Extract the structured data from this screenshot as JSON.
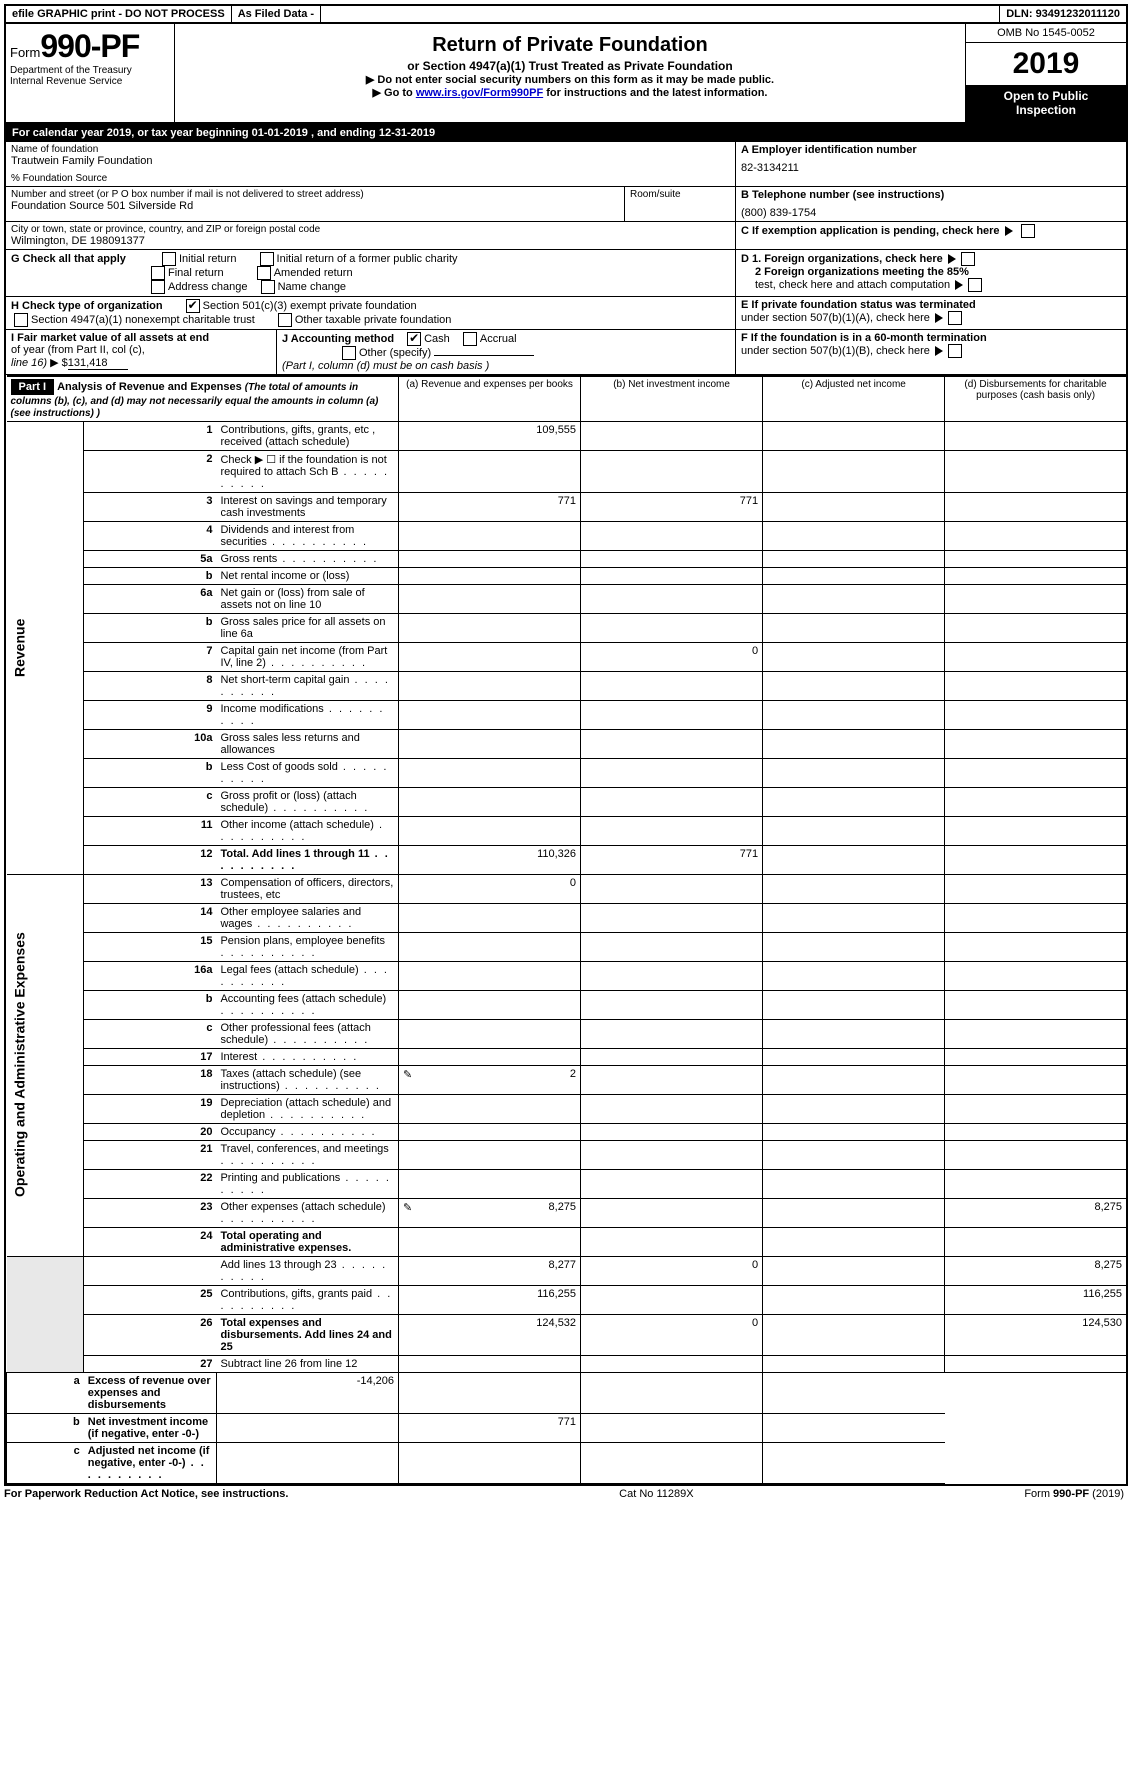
{
  "topbar": {
    "efile": "efile GRAPHIC print - DO NOT PROCESS",
    "asfiled": "As Filed Data -",
    "dln_label": "DLN:",
    "dln": "93491232011120"
  },
  "header": {
    "form_prefix": "Form",
    "form_no": "990-PF",
    "dept": "Department of the Treasury",
    "irs": "Internal Revenue Service",
    "title": "Return of Private Foundation",
    "subtitle": "or Section 4947(a)(1) Trust Treated as Private Foundation",
    "warn1": "Do not enter social security numbers on this form as it may be made public.",
    "warn2_pre": "Go to ",
    "warn2_link": "www.irs.gov/Form990PF",
    "warn2_post": " for instructions and the latest information.",
    "omb": "OMB No 1545-0052",
    "year": "2019",
    "open1": "Open to Public",
    "open2": "Inspection"
  },
  "calyear": {
    "pre": "For calendar year 2019, or tax year beginning ",
    "begin": "01-01-2019",
    "mid": " , and ending ",
    "end": "12-31-2019"
  },
  "ident": {
    "name_label": "Name of foundation",
    "name": "Trautwein Family Foundation",
    "pct_label": "% Foundation Source",
    "street_label": "Number and street (or P O  box number if mail is not delivered to street address)",
    "street": "Foundation Source 501 Silverside Rd",
    "room_label": "Room/suite",
    "city_label": "City or town, state or province, country, and ZIP or foreign postal code",
    "city": "Wilmington, DE  198091377",
    "a_label": "A Employer identification number",
    "a_val": "82-3134211",
    "b_label": "B Telephone number (see instructions)",
    "b_val": "(800) 839-1754",
    "c_label": "C If exemption application is pending, check here",
    "d1": "D 1. Foreign organizations, check here",
    "d2a": "2 Foreign organizations meeting the 85%",
    "d2b": "test, check here and attach computation",
    "e1": "E  If private foundation status was terminated",
    "e2": "under section 507(b)(1)(A), check here",
    "f1": "F  If the foundation is in a 60-month termination",
    "f2": "under section 507(b)(1)(B), check here"
  },
  "g": {
    "label": "G Check all that apply",
    "opts": [
      "Initial return",
      "Initial return of a former public charity",
      "Final return",
      "Amended return",
      "Address change",
      "Name change"
    ]
  },
  "h": {
    "label": "H Check type of organization",
    "o1": "Section 501(c)(3) exempt private foundation",
    "o2": "Section 4947(a)(1) nonexempt charitable trust",
    "o3": "Other taxable private foundation"
  },
  "i": {
    "label1": "I Fair market value of all assets at end",
    "label2": "of year (from Part II, col  (c),",
    "label3": "line 16)",
    "val_prefix": "▶ $",
    "val": "131,418"
  },
  "j": {
    "label": "J Accounting method",
    "cash": "Cash",
    "accrual": "Accrual",
    "other": "Other (specify)",
    "note": "(Part I, column (d) must be on cash basis )"
  },
  "part1hdr": {
    "tag": "Part I",
    "title": "Analysis of Revenue and Expenses",
    "title_note": "(The total of amounts in columns (b), (c), and (d) may not necessarily equal the amounts in column (a) (see instructions) )",
    "col_a": "(a) Revenue and expenses per books",
    "col_b": "(b) Net investment income",
    "col_c": "(c) Adjusted net income",
    "col_d": "(d) Disbursements for charitable purposes (cash basis only)"
  },
  "sidelabels": {
    "rev": "Revenue",
    "exp": "Operating and Administrative Expenses"
  },
  "rows": [
    {
      "n": "1",
      "t": "Contributions, gifts, grants, etc , received (attach schedule)",
      "a": "109,555"
    },
    {
      "n": "2",
      "t": "Check ▶ ☐ if the foundation is not required to attach Sch  B",
      "dots": true
    },
    {
      "n": "3",
      "t": "Interest on savings and temporary cash investments",
      "a": "771",
      "b": "771"
    },
    {
      "n": "4",
      "t": "Dividends and interest from securities",
      "dots": true
    },
    {
      "n": "5a",
      "t": "Gross rents",
      "dots": true
    },
    {
      "n": "b",
      "t": "Net rental income or (loss)"
    },
    {
      "n": "6a",
      "t": "Net gain or (loss) from sale of assets not on line 10"
    },
    {
      "n": "b",
      "t": "Gross sales price for all assets on line 6a"
    },
    {
      "n": "7",
      "t": "Capital gain net income (from Part IV, line 2)",
      "dots": true,
      "b": "0"
    },
    {
      "n": "8",
      "t": "Net short-term capital gain",
      "dots": true
    },
    {
      "n": "9",
      "t": "Income modifications",
      "dots": true
    },
    {
      "n": "10a",
      "t": "Gross sales less returns and allowances"
    },
    {
      "n": "b",
      "t": "Less  Cost of goods sold",
      "dots": true
    },
    {
      "n": "c",
      "t": "Gross profit or (loss) (attach schedule)",
      "dots": true
    },
    {
      "n": "11",
      "t": "Other income (attach schedule)",
      "dots": true
    },
    {
      "n": "12",
      "t": "Total. Add lines 1 through 11",
      "dots": true,
      "bold": true,
      "a": "110,326",
      "b": "771"
    },
    {
      "n": "13",
      "t": "Compensation of officers, directors, trustees, etc",
      "a": "0"
    },
    {
      "n": "14",
      "t": "Other employee salaries and wages",
      "dots": true
    },
    {
      "n": "15",
      "t": "Pension plans, employee benefits",
      "dots": true
    },
    {
      "n": "16a",
      "t": "Legal fees (attach schedule)",
      "dots": true
    },
    {
      "n": "b",
      "t": "Accounting fees (attach schedule)",
      "dots": true
    },
    {
      "n": "c",
      "t": "Other professional fees (attach schedule)",
      "dots": true
    },
    {
      "n": "17",
      "t": "Interest",
      "dots": true
    },
    {
      "n": "18",
      "t": "Taxes (attach schedule) (see instructions)",
      "dots": true,
      "icon": true,
      "a": "2"
    },
    {
      "n": "19",
      "t": "Depreciation (attach schedule) and depletion",
      "dots": true
    },
    {
      "n": "20",
      "t": "Occupancy",
      "dots": true
    },
    {
      "n": "21",
      "t": "Travel, conferences, and meetings",
      "dots": true
    },
    {
      "n": "22",
      "t": "Printing and publications",
      "dots": true
    },
    {
      "n": "23",
      "t": "Other expenses (attach schedule)",
      "dots": true,
      "icon": true,
      "a": "8,275",
      "d": "8,275"
    },
    {
      "n": "24",
      "t": "Total operating and administrative expenses.",
      "bold": true
    },
    {
      "n": "",
      "t": "Add lines 13 through 23",
      "dots": true,
      "a": "8,277",
      "b": "0",
      "d": "8,275"
    },
    {
      "n": "25",
      "t": "Contributions, gifts, grants paid",
      "dots": true,
      "a": "116,255",
      "d": "116,255"
    },
    {
      "n": "26",
      "t": "Total expenses and disbursements. Add lines 24 and 25",
      "bold": true,
      "a": "124,532",
      "b": "0",
      "d": "124,530"
    },
    {
      "n": "27",
      "t": "Subtract line 26 from line 12"
    },
    {
      "n": "a",
      "t": "Excess of revenue over expenses and disbursements",
      "bold": true,
      "a": "-14,206"
    },
    {
      "n": "b",
      "t": "Net investment income (if negative, enter -0-)",
      "bold": true,
      "b": "771"
    },
    {
      "n": "c",
      "t": "Adjusted net income (if negative, enter -0-)",
      "bold": true,
      "dots": true
    }
  ],
  "footer": {
    "left": "For Paperwork Reduction Act Notice, see instructions.",
    "mid": "Cat  No  11289X",
    "right_pre": "Form ",
    "right_form": "990-PF",
    "right_post": " (2019)"
  }
}
